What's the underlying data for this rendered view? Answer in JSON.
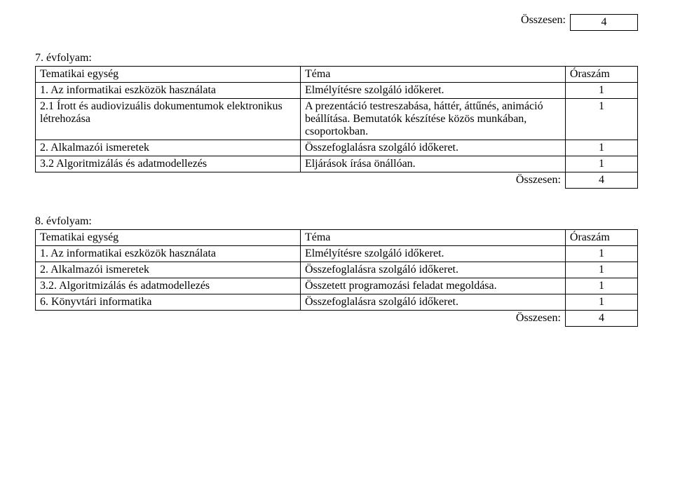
{
  "top_total": {
    "label": "Összesen:",
    "value": "4"
  },
  "grade7": {
    "heading": "7. évfolyam:",
    "header": {
      "c1": "Tematikai egység",
      "c2": "Téma",
      "c3": "Óraszám"
    },
    "rows": [
      {
        "c1": "1. Az informatikai eszközök használata",
        "c2": "Elmélyítésre szolgáló időkeret.",
        "c3": "1"
      },
      {
        "c1": "2.1 Írott és audiovizuális dokumentumok elektronikus létrehozása",
        "c2": "A prezentáció testreszabása, háttér, áttűnés, animáció beállítása. Bemutatók készítése közös munkában, csoportokban.",
        "c3": "1"
      },
      {
        "c1": "2. Alkalmazói ismeretek",
        "c2": "Összefoglalásra szolgáló időkeret.",
        "c3": "1"
      },
      {
        "c1": "3.2 Algoritmizálás és adatmodellezés",
        "c2": "Eljárások írása önállóan.",
        "c3": "1"
      }
    ],
    "total": {
      "label": "Összesen:",
      "value": "4"
    }
  },
  "grade8": {
    "heading": "8. évfolyam:",
    "header": {
      "c1": "Tematikai egység",
      "c2": "Téma",
      "c3": "Óraszám"
    },
    "rows": [
      {
        "c1": "1. Az informatikai eszközök használata",
        "c2": "Elmélyítésre szolgáló időkeret.",
        "c3": "1"
      },
      {
        "c1": "2. Alkalmazói ismeretek",
        "c2": "Összefoglalásra szolgáló időkeret.",
        "c3": "1"
      },
      {
        "c1": "3.2. Algoritmizálás és adatmodellezés",
        "c2": "Összetett programozási feladat megoldása.",
        "c3": "1"
      },
      {
        "c1": "6. Könyvtári informatika",
        "c2": "Összefoglalásra szolgáló időkeret.",
        "c3": "1"
      }
    ],
    "total": {
      "label": "Összesen:",
      "value": "4"
    }
  }
}
